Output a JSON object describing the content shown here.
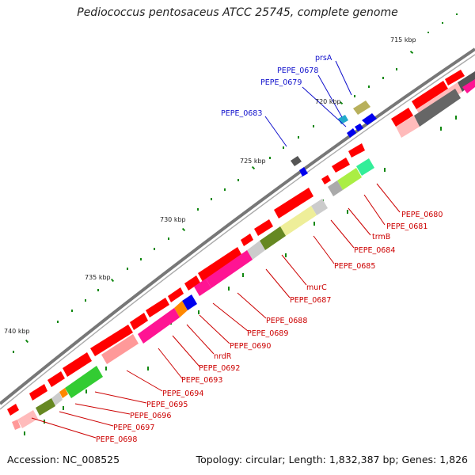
{
  "map": {
    "title": "Pediococcus pentosaceus ATCC 25745, complete genome",
    "accession": "Accession: NC_008525",
    "topology": "Topology: circular; Length: 1,832,387 bp; Genes: 1,826"
  },
  "scale_labels": [
    "715 kbp",
    "720 kbp",
    "725 kbp",
    "730 kbp",
    "735 kbp",
    "740 kbp"
  ],
  "gene_labels": {
    "plus_strand": [
      "prsA",
      "PEPE_0678",
      "PEPE_0679",
      "PEPE_0683"
    ],
    "minus_strand": [
      "PEPE_0680",
      "PEPE_0681",
      "trmB",
      "PEPE_0684",
      "PEPE_0685",
      "murC",
      "PEPE_0687",
      "PEPE_0688",
      "PEPE_0689",
      "PEPE_0690",
      "nrdR",
      "PEPE_0692",
      "PEPE_0693",
      "PEPE_0694",
      "PEPE_0695",
      "PEPE_0696",
      "PEPE_0697",
      "PEPE_0698"
    ]
  },
  "colors": {
    "backbone": "#777777",
    "cds": "#ff0000",
    "plus_strand_label": "#1111cc",
    "minus_strand_label": "#cc0000",
    "scale_tick": "#118811"
  }
}
